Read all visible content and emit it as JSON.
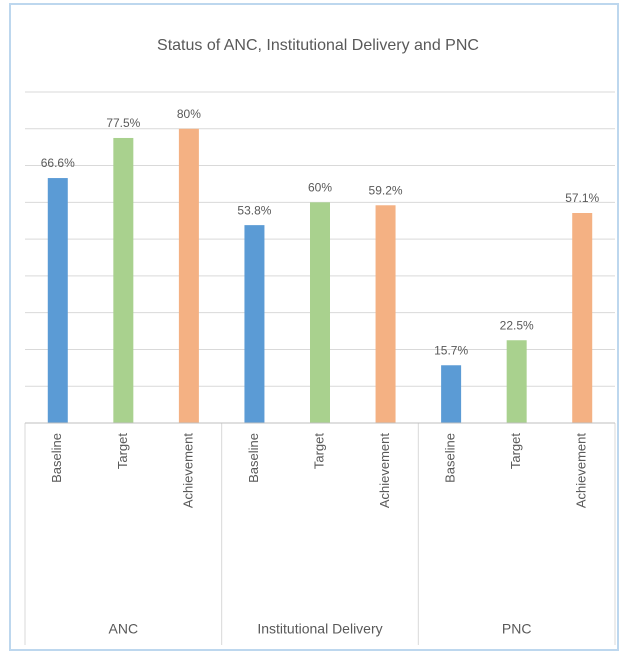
{
  "chart_data": {
    "type": "grouped-bar",
    "title": "Status of ANC, Institutional Delivery and PNC",
    "colors": [
      "#5b9bd5",
      "#a9d18e",
      "#f4b183"
    ],
    "groups": [
      {
        "name": "ANC",
        "categories": [
          "Baseline",
          "Target",
          "Achievement"
        ],
        "values": [
          66.6,
          77.5,
          80
        ],
        "value_labels": [
          "66.6%",
          "77.5%",
          "80%"
        ]
      },
      {
        "name": "Institutional Delivery",
        "categories": [
          "Baseline",
          "Target",
          "Achievement"
        ],
        "values": [
          53.8,
          60,
          59.2
        ],
        "value_labels": [
          "53.8%",
          "60%",
          "59.2%"
        ]
      },
      {
        "name": "PNC",
        "categories": [
          "Baseline",
          "Target",
          "Achievement"
        ],
        "values": [
          15.7,
          22.5,
          57.1
        ],
        "value_labels": [
          "15.7%",
          "22.5%",
          "57.1%"
        ]
      }
    ],
    "ylim": [
      0,
      90
    ],
    "yticks": [
      0,
      10,
      20,
      30,
      40,
      50,
      60,
      70,
      80,
      90
    ],
    "grid": true
  }
}
